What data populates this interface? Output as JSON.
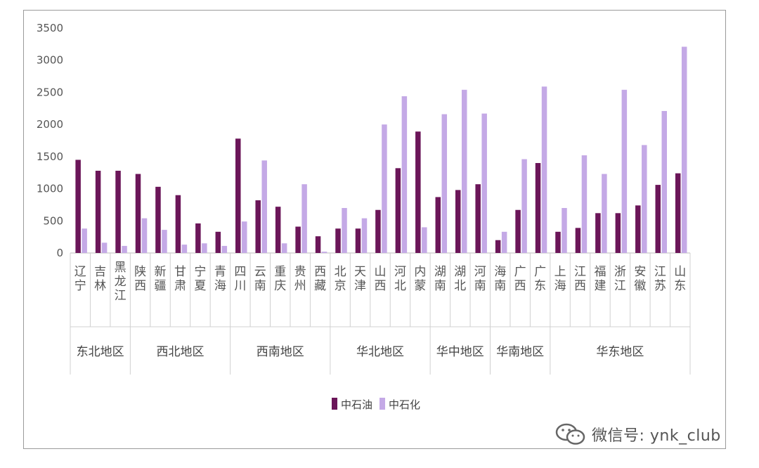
{
  "chart_data": {
    "type": "bar",
    "title": "",
    "xlabel": "",
    "ylabel": "",
    "ylim": [
      0,
      3500
    ],
    "yticks": [
      0,
      500,
      1000,
      1500,
      2000,
      2500,
      3000,
      3500
    ],
    "grid": false,
    "legend_position": "bottom",
    "categories": [
      "辽宁",
      "吉林",
      "黑龙江",
      "陕西",
      "新疆",
      "甘肃",
      "宁夏",
      "青海",
      "四川",
      "云南",
      "重庆",
      "贵州",
      "西藏",
      "北京",
      "天津",
      "山西",
      "河北",
      "内蒙",
      "湖南",
      "湖北",
      "河南",
      "海南",
      "广西",
      "广东",
      "上海",
      "江西",
      "福建",
      "浙江",
      "安徽",
      "江苏",
      "山东"
    ],
    "regions": [
      {
        "label": "东北地区",
        "count": 3
      },
      {
        "label": "西北地区",
        "count": 5
      },
      {
        "label": "西南地区",
        "count": 5
      },
      {
        "label": "华北地区",
        "count": 5
      },
      {
        "label": "华中地区",
        "count": 3
      },
      {
        "label": "华南地区",
        "count": 3
      },
      {
        "label": "华东地区",
        "count": 7
      }
    ],
    "series": [
      {
        "name": "中石油",
        "color": "#6b1659",
        "values": [
          1450,
          1280,
          1280,
          1230,
          1030,
          900,
          460,
          330,
          1780,
          820,
          720,
          410,
          260,
          380,
          380,
          670,
          1320,
          1890,
          870,
          980,
          1070,
          200,
          670,
          1400,
          330,
          390,
          620,
          620,
          740,
          1060,
          1240
        ]
      },
      {
        "name": "中石化",
        "color": "#c4a9e6",
        "values": [
          380,
          160,
          110,
          540,
          360,
          130,
          150,
          110,
          490,
          1440,
          150,
          1070,
          20,
          700,
          540,
          2000,
          2440,
          400,
          2160,
          2540,
          2170,
          330,
          1460,
          2590,
          700,
          1520,
          1230,
          2540,
          1680,
          2210,
          3210
        ]
      }
    ]
  },
  "watermark": {
    "text": "微信号: ynk_club",
    "icon": "wechat-icon"
  }
}
